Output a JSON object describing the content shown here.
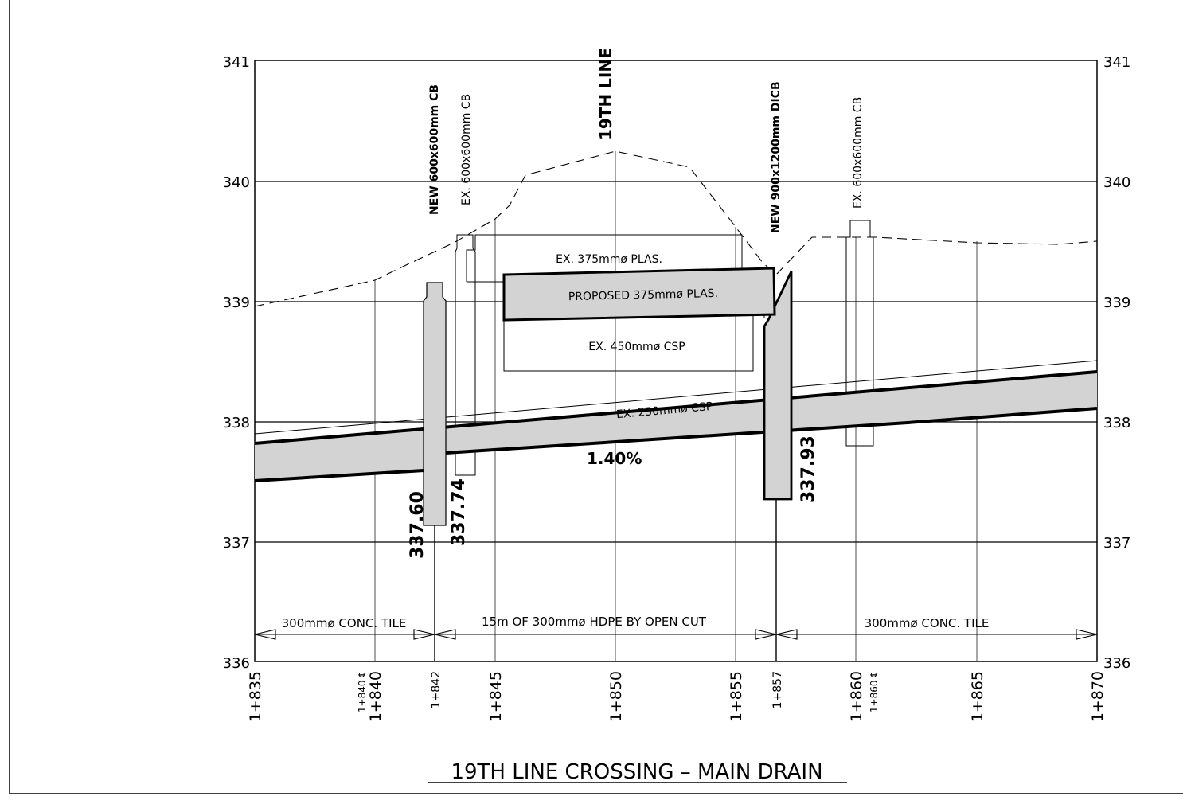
{
  "title": "19TH LINE CROSSING – MAIN DRAIN",
  "colors": {
    "line": "#000000",
    "fill_gray": "#d3d3d3",
    "background": "#ffffff"
  },
  "axis": {
    "elevations": [
      "341",
      "340",
      "339",
      "338",
      "337",
      "336"
    ],
    "stations": [
      "1+835",
      "1+840",
      "1+842",
      "1+845",
      "1+850",
      "1+855",
      "1+857",
      "1+860",
      "1+865",
      "1+870"
    ],
    "centerline_labels": [
      "1+840 ℄",
      "1+860 ℄"
    ]
  },
  "structures": {
    "new_cb": "NEW 600x600mm CB",
    "ex_cb_left": "EX. 600x600mm CB",
    "road": "19TH LINE",
    "new_dicb": "NEW 900x1200mm DICB",
    "ex_cb_right": "EX. 600x600mm CB"
  },
  "pipes": {
    "ex_375": "EX. 375mmø PLAS.",
    "proposed_375": "PROPOSED 375mmø PLAS.",
    "ex_450": "EX. 450mmø CSP",
    "ex_250": "EX. 250mmø CSP"
  },
  "inverts": {
    "a": "337.60",
    "b": "337.74",
    "c": "337.93",
    "slope": "1.40%"
  },
  "segments": {
    "left": "300mmø CONC. TILE",
    "middle": "15m OF 300mmø HDPE BY OPEN CUT",
    "right": "300mmø CONC. TILE"
  }
}
